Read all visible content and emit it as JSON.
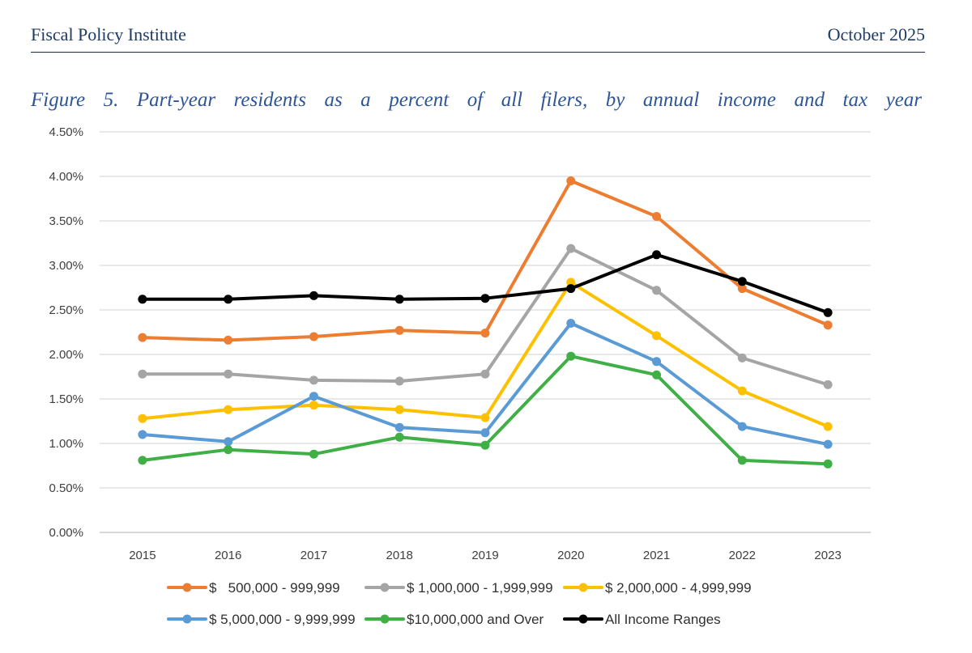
{
  "header": {
    "org": "Fiscal Policy Institute",
    "date": "October 2025"
  },
  "figure": {
    "title": "Figure 5. Part-year residents as a percent of all filers, by annual income and tax year"
  },
  "chart_data": {
    "type": "line",
    "title": "",
    "xlabel": "",
    "ylabel": "",
    "x": [
      2015,
      2016,
      2017,
      2018,
      2019,
      2020,
      2021,
      2022,
      2023
    ],
    "ylim": [
      0,
      4.5
    ],
    "yticks": [
      "0.00%",
      "0.50%",
      "1.00%",
      "1.50%",
      "2.00%",
      "2.50%",
      "3.00%",
      "3.50%",
      "4.00%",
      "4.50%"
    ],
    "grid": "horizontal",
    "legend_position": "bottom",
    "series": [
      {
        "name": "$   500,000 - 999,999",
        "color": "#ED7D31",
        "values": [
          2.19,
          2.16,
          2.2,
          2.27,
          2.24,
          3.95,
          3.55,
          2.74,
          2.33
        ]
      },
      {
        "name": "$ 1,000,000 - 1,999,999",
        "color": "#A5A5A5",
        "values": [
          1.78,
          1.78,
          1.71,
          1.7,
          1.78,
          3.19,
          2.72,
          1.96,
          1.66
        ]
      },
      {
        "name": "$ 2,000,000 - 4,999,999",
        "color": "#FFC000",
        "values": [
          1.28,
          1.38,
          1.43,
          1.38,
          1.29,
          2.81,
          2.21,
          1.59,
          1.19
        ]
      },
      {
        "name": "$ 5,000,000 - 9,999,999",
        "color": "#5B9BD5",
        "values": [
          1.1,
          1.02,
          1.53,
          1.18,
          1.12,
          2.35,
          1.92,
          1.19,
          0.99
        ]
      },
      {
        "name": "$10,000,000 and Over",
        "color": "#3FAF46",
        "values": [
          0.81,
          0.93,
          0.88,
          1.07,
          0.98,
          1.98,
          1.77,
          0.81,
          0.77
        ]
      },
      {
        "name": "All Income Ranges",
        "color": "#000000",
        "values": [
          2.62,
          2.62,
          2.66,
          2.62,
          2.63,
          2.74,
          3.12,
          2.82,
          2.47
        ]
      }
    ]
  }
}
